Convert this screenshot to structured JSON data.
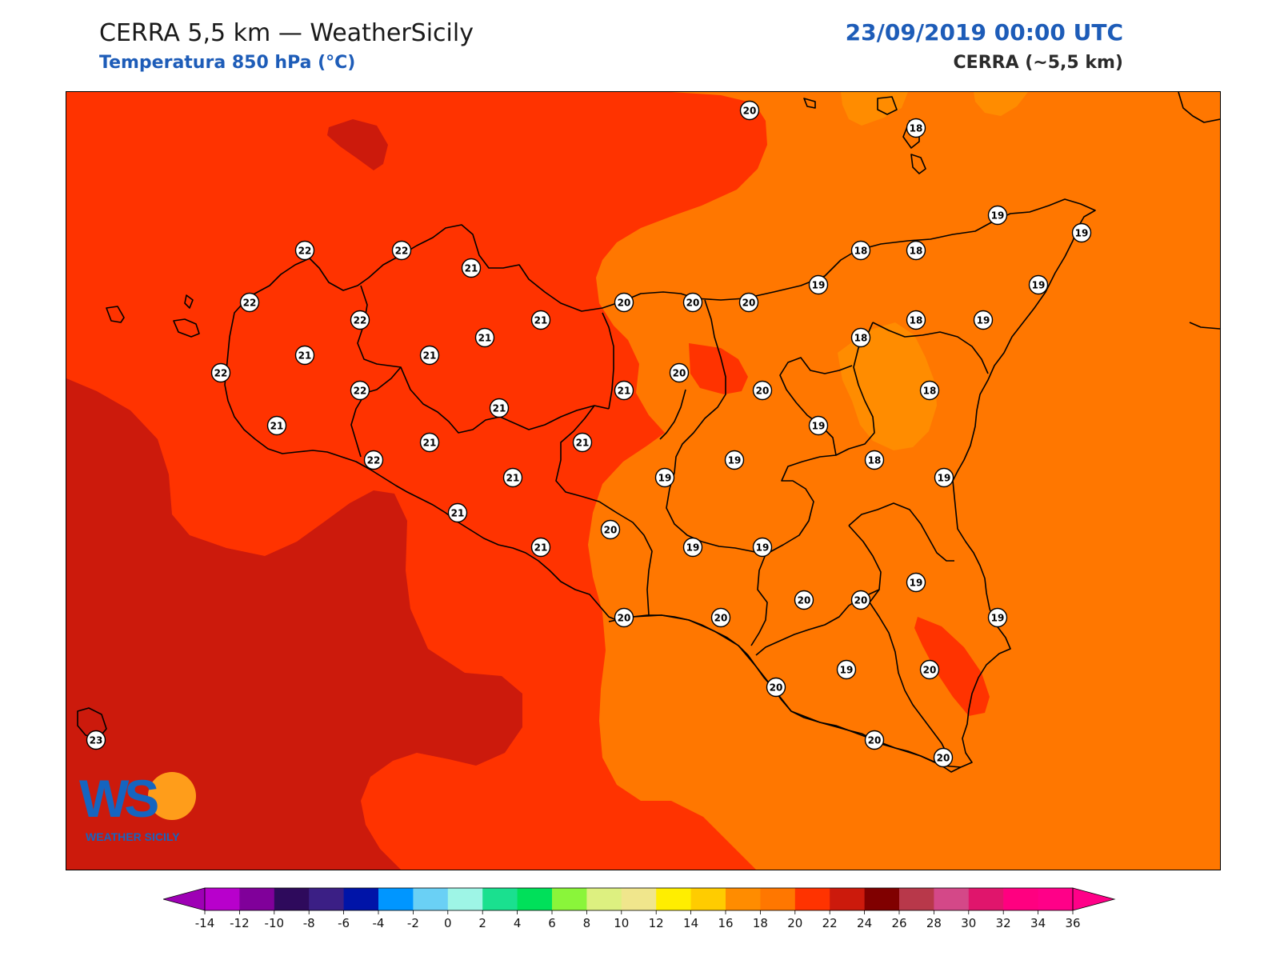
{
  "header": {
    "title": "CERRA 5,5 km — WeatherSicily",
    "subtitle": "Temperatura 850 hPa (°C)",
    "datetime": "23/09/2019 00:00 UTC",
    "model": "CERRA (~5,5 km)"
  },
  "logo": {
    "letters": "WS",
    "text": "WEATHER SICILY"
  },
  "colors": {
    "t16_18": "#ff8c00",
    "t18_20": "#ff7700",
    "t20_22": "#ff3300",
    "t22_24": "#cc1a0c",
    "coast": "#000000",
    "marker_fill": "#ffffff"
  },
  "stations": [
    {
      "v": "20"
    },
    {
      "v": "18"
    },
    {
      "v": "19"
    },
    {
      "v": "19"
    },
    {
      "v": "22"
    },
    {
      "v": "22"
    },
    {
      "v": "21"
    },
    {
      "v": "18"
    },
    {
      "v": "18"
    },
    {
      "v": "19"
    },
    {
      "v": "19"
    },
    {
      "v": "22"
    },
    {
      "v": "22"
    },
    {
      "v": "21"
    },
    {
      "v": "20"
    },
    {
      "v": "20"
    },
    {
      "v": "20"
    },
    {
      "v": "21"
    },
    {
      "v": "21"
    },
    {
      "v": "18"
    },
    {
      "v": "19"
    },
    {
      "v": "18"
    },
    {
      "v": "22"
    },
    {
      "v": "21"
    },
    {
      "v": "21"
    },
    {
      "v": "20"
    },
    {
      "v": "21"
    },
    {
      "v": "22"
    },
    {
      "v": "20"
    },
    {
      "v": "18"
    },
    {
      "v": "21"
    },
    {
      "v": "21"
    },
    {
      "v": "19"
    },
    {
      "v": "21"
    },
    {
      "v": "22"
    },
    {
      "v": "19"
    },
    {
      "v": "21"
    },
    {
      "v": "19"
    },
    {
      "v": "18"
    },
    {
      "v": "19"
    },
    {
      "v": "20"
    },
    {
      "v": "21"
    },
    {
      "v": "19"
    },
    {
      "v": "21"
    },
    {
      "v": "19"
    },
    {
      "v": "20"
    },
    {
      "v": "20"
    },
    {
      "v": "20"
    },
    {
      "v": "19"
    },
    {
      "v": "19"
    },
    {
      "v": "20"
    },
    {
      "v": "20"
    },
    {
      "v": "20"
    },
    {
      "v": "19"
    },
    {
      "v": "20"
    },
    {
      "v": "23"
    },
    {
      "v": "20"
    }
  ],
  "colorbar": {
    "ticks": [
      "-14",
      "-12",
      "-10",
      "-8",
      "-6",
      "-4",
      "-2",
      "0",
      "2",
      "4",
      "6",
      "8",
      "10",
      "12",
      "14",
      "16",
      "18",
      "20",
      "22",
      "24",
      "26",
      "28",
      "30",
      "32",
      "34",
      "36"
    ],
    "under_color": "#9e00b5",
    "over_color": "#ff0088",
    "colors": [
      "#b800cc",
      "#80009a",
      "#2e0a5c",
      "#3b1f85",
      "#0014a8",
      "#0096ff",
      "#6ad0f5",
      "#9ef5e6",
      "#1ae08f",
      "#00e05a",
      "#8af53a",
      "#ddf080",
      "#f0e68c",
      "#ffee00",
      "#ffcc00",
      "#ff8c00",
      "#ff7700",
      "#ff3300",
      "#cc1a0c",
      "#800000",
      "#b8384a",
      "#d44888",
      "#e0156c",
      "#ff0080",
      "#ff0088"
    ]
  }
}
